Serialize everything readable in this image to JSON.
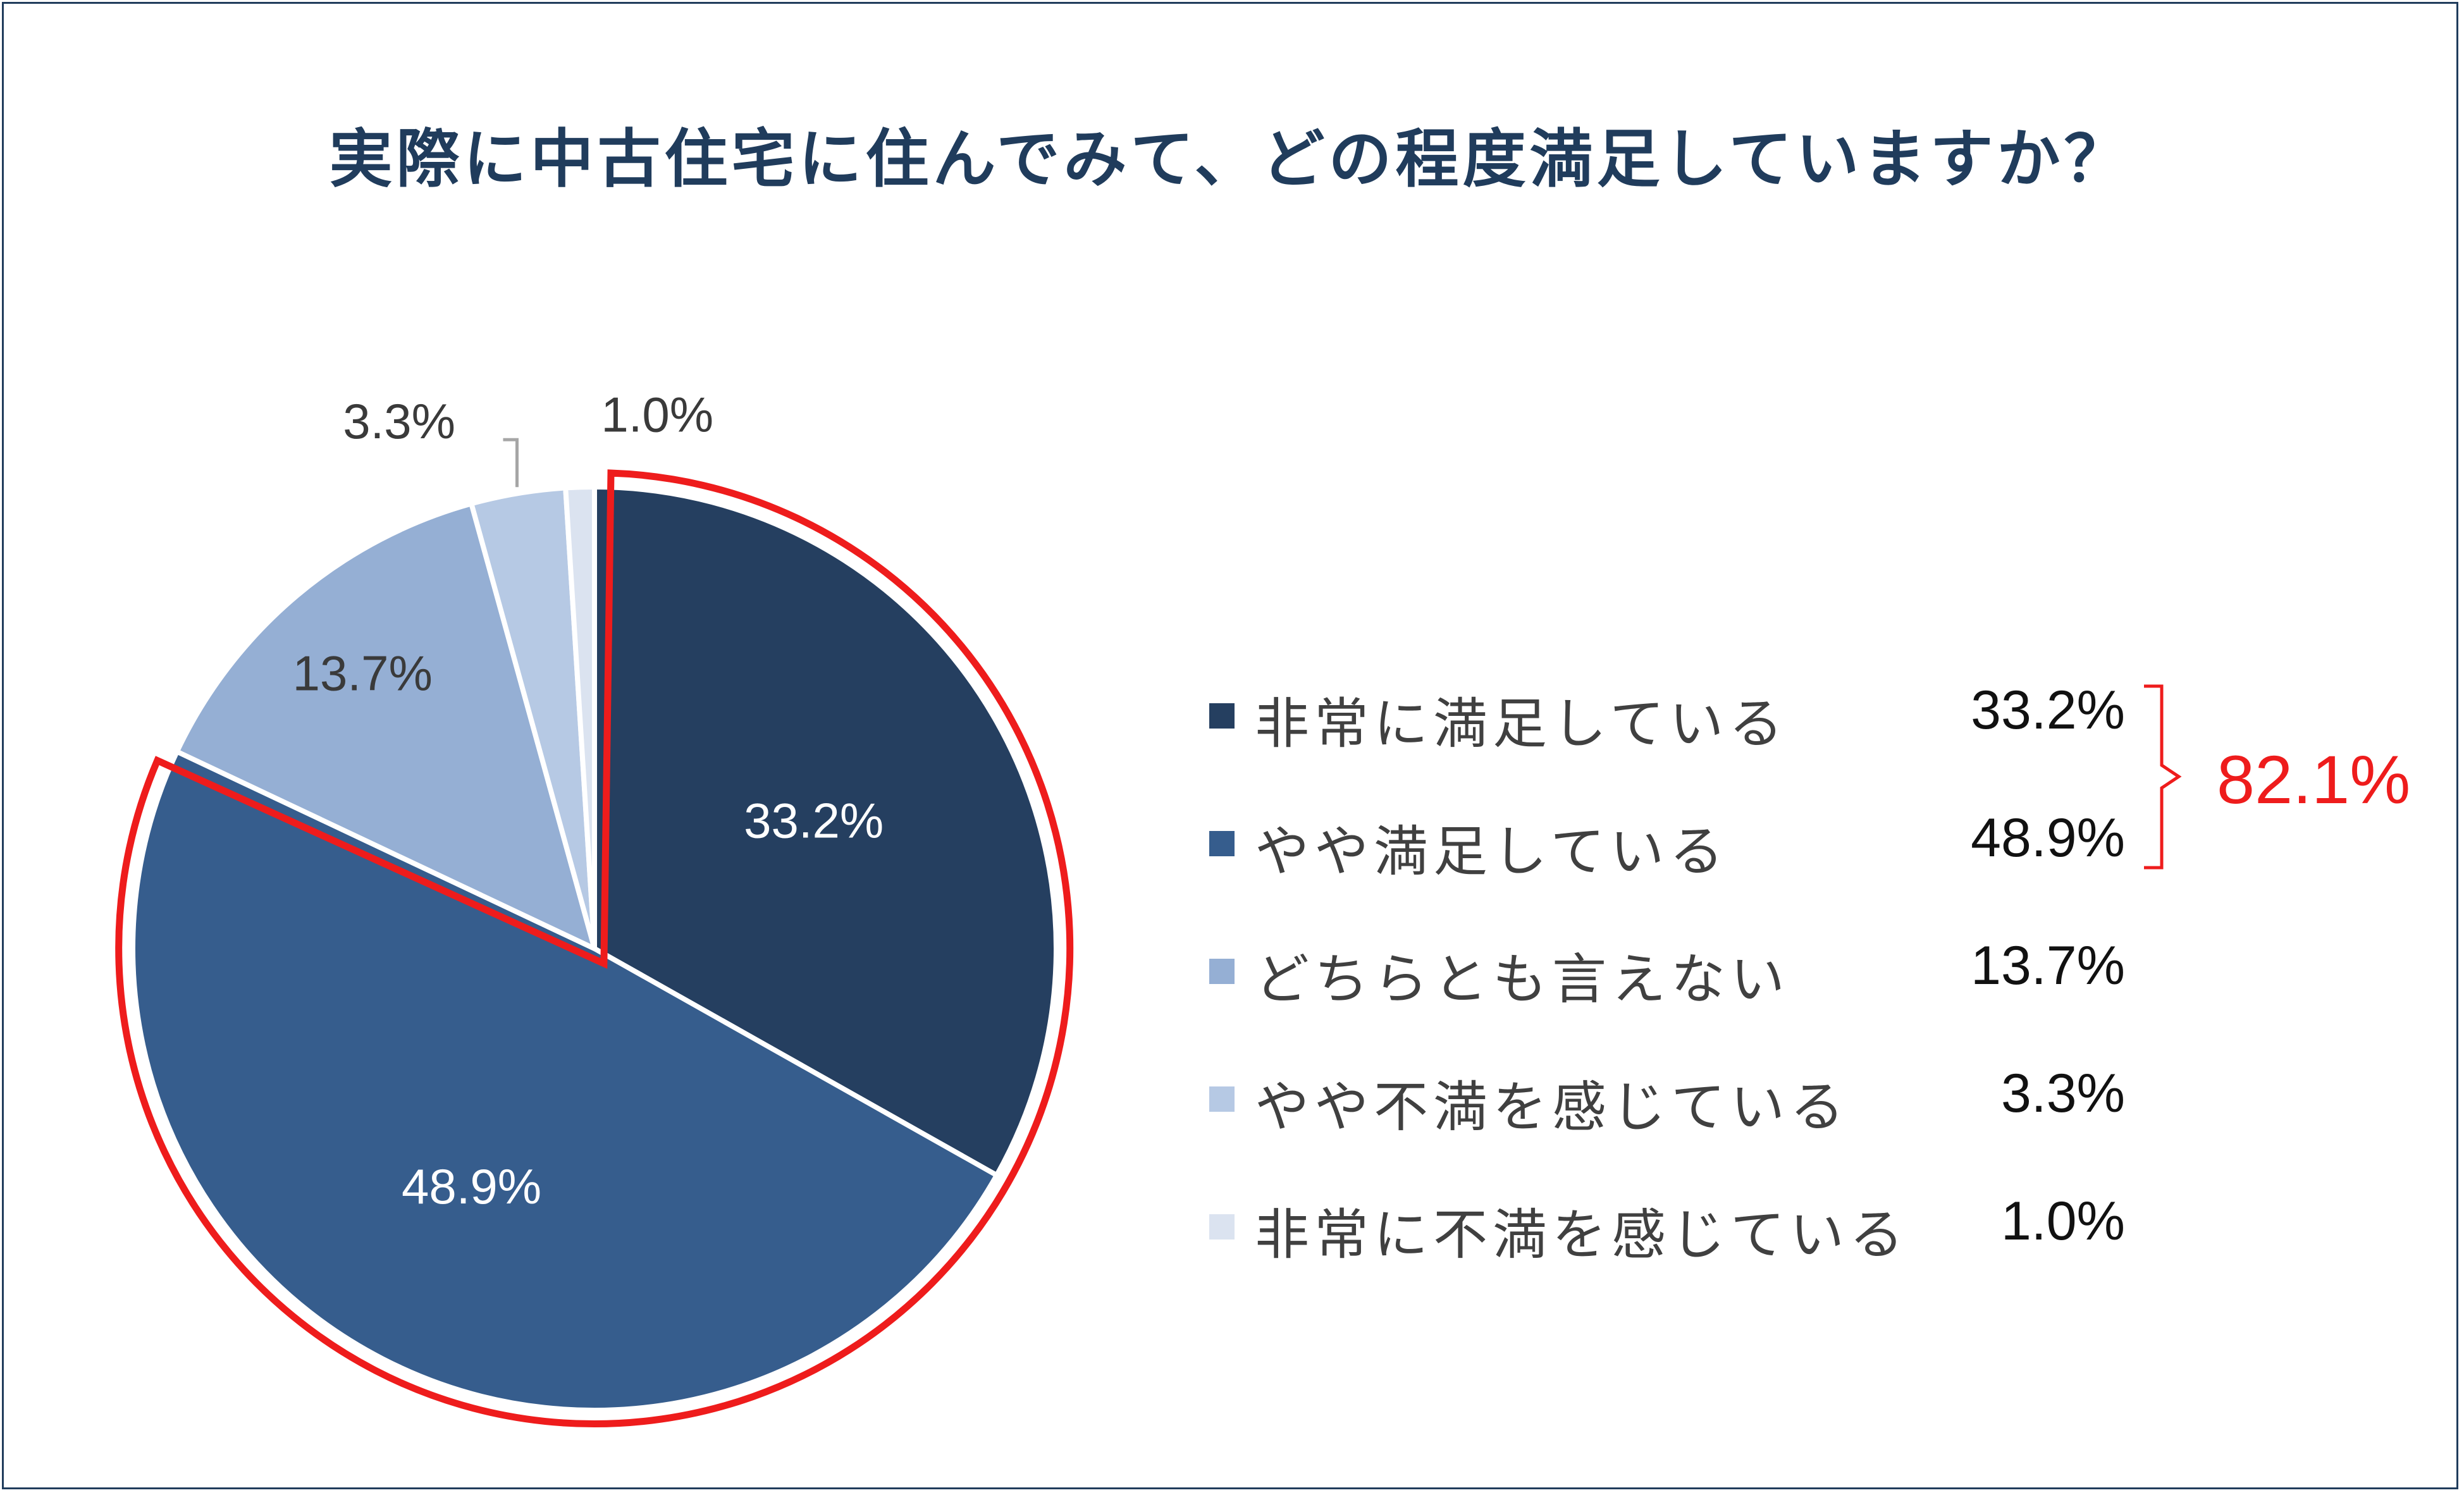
{
  "chart_data": {
    "type": "pie",
    "title": "実際に中古住宅に住んでみて、どの程度満足していますか？",
    "categories": [
      "非常に満足している",
      "やや満足している",
      "どちらとも言えない",
      "やや不満を感じている",
      "非常に不満を感じている"
    ],
    "values": [
      33.2,
      48.9,
      13.7,
      3.3,
      1.0
    ],
    "value_labels": [
      "33.2%",
      "48.9%",
      "13.7%",
      "3.3%",
      "1.0%"
    ],
    "colors": [
      "#253f60",
      "#365d8d",
      "#95afd4",
      "#b6c9e4",
      "#dbe3f0"
    ],
    "legend_position": "right",
    "highlight": {
      "slices": [
        0,
        1
      ],
      "label": "82.1%",
      "color": "#ee1c1c"
    }
  }
}
